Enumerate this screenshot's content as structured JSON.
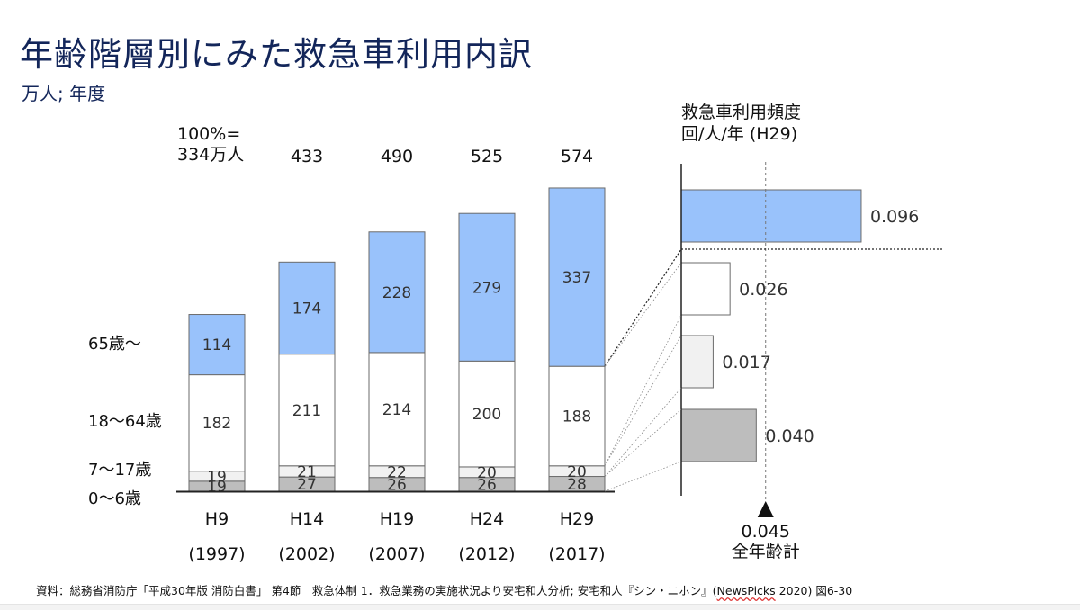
{
  "slide": {
    "title": "年齢階層別にみた救急車利用内訳",
    "subtitle": "万人; 年度",
    "right_header_line1": "救急車利用頻度",
    "right_header_line2": "回/人/年 (H29)",
    "footnote_main": "資料：総務省消防庁「平成30年版 消防白書」 第4節　救急体制 1．救急業務の実施状況より安宅和人分析; 安宅和人『シン・ニホン』(",
    "footnote_publisher": "NewsPicks",
    "footnote_tail": " 2020) 図6-30"
  },
  "colors": {
    "senior": "#99c2fb",
    "adult": "#ffffff",
    "youth": "#f1f1f1",
    "child": "#bdbdbd",
    "title": "#13265a"
  },
  "chart_data": [
    {
      "type": "bar",
      "stacked": true,
      "title": "年齢階層別にみた救急車利用内訳",
      "unit": "万人",
      "categories": [
        "H9",
        "H14",
        "H19",
        "H24",
        "H29"
      ],
      "category_years": [
        "(1997)",
        "(2002)",
        "(2007)",
        "(2012)",
        "(2017)"
      ],
      "totals": [
        334,
        433,
        490,
        525,
        574
      ],
      "total_labels": [
        "100%=\n334万人",
        "433",
        "490",
        "525",
        "574"
      ],
      "series": [
        {
          "name": "0〜6歳",
          "color": "#bdbdbd",
          "values": [
            19,
            27,
            26,
            26,
            28
          ]
        },
        {
          "name": "7〜17歳",
          "color": "#f1f1f1",
          "values": [
            19,
            21,
            22,
            20,
            20
          ]
        },
        {
          "name": "18〜64歳",
          "color": "#ffffff",
          "values": [
            182,
            211,
            214,
            200,
            188
          ]
        },
        {
          "name": "65歳〜",
          "color": "#99c2fb",
          "values": [
            114,
            174,
            228,
            279,
            337
          ]
        }
      ]
    },
    {
      "type": "bar",
      "orientation": "horizontal",
      "title": "救急車利用頻度",
      "xlabel": "回/人/年 (H29)",
      "categories": [
        "65歳〜",
        "18〜64歳",
        "7〜17歳",
        "0〜6歳"
      ],
      "values": [
        0.096,
        0.026,
        0.017,
        0.04
      ],
      "value_labels": [
        "0.096",
        "0.026",
        "0.017",
        "0.040"
      ],
      "colors": [
        "#99c2fb",
        "#ffffff",
        "#f1f1f1",
        "#bdbdbd"
      ],
      "reference": {
        "value": 0.045,
        "label": "0.045",
        "caption": "全年齢計"
      },
      "xlim": [
        0,
        0.1
      ]
    }
  ]
}
